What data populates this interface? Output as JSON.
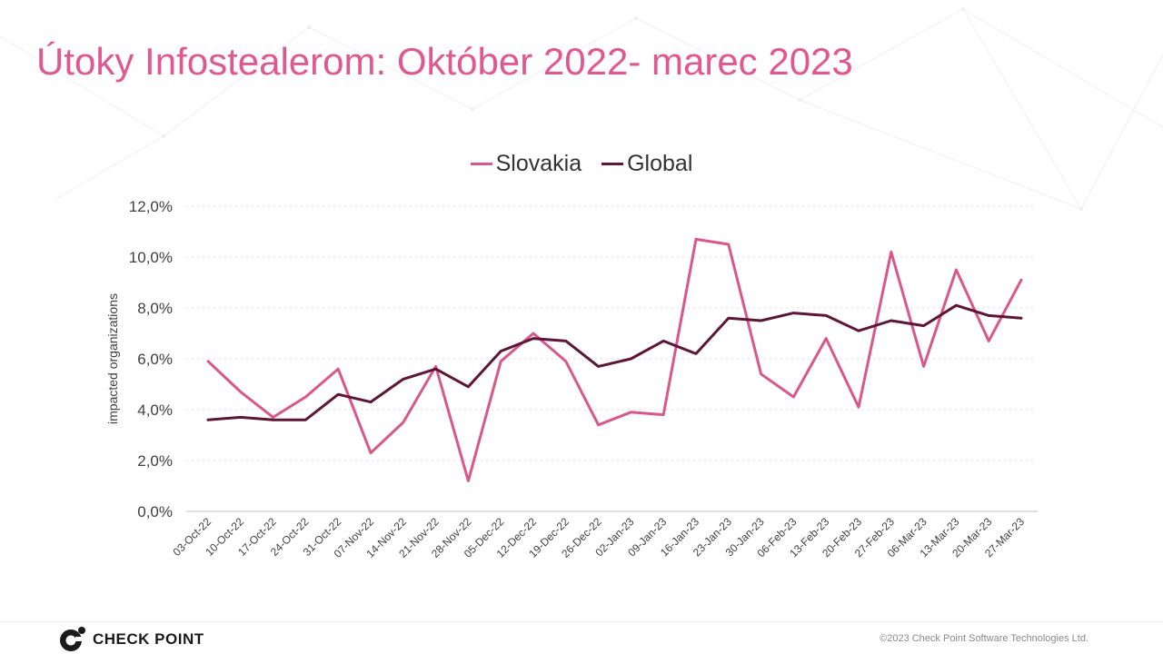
{
  "slide": {
    "title": "Útoky Infostealerom: Október 2022- marec 2023",
    "brand": "CHECK POINT",
    "copyright": "©2023 Check Point Software Technologies Ltd."
  },
  "colors": {
    "title": "#e0588f",
    "slovakia": "#d9578a",
    "global": "#5e1536",
    "grid": "#d9d9d9",
    "axis_text": "#404040"
  },
  "chart_data": {
    "type": "line",
    "title": "",
    "ylabel": "impacted organizations",
    "xlabel": "",
    "ylim": [
      0,
      12
    ],
    "yticks": [
      "0,0%",
      "2,0%",
      "4,0%",
      "6,0%",
      "8,0%",
      "10,0%",
      "12,0%"
    ],
    "grid": true,
    "legend": "top-center",
    "categories": [
      "03-Oct-22",
      "10-Oct-22",
      "17-Oct-22",
      "24-Oct-22",
      "31-Oct-22",
      "07-Nov-22",
      "14-Nov-22",
      "21-Nov-22",
      "28-Nov-22",
      "05-Dec-22",
      "12-Dec-22",
      "19-Dec-22",
      "26-Dec-22",
      "02-Jan-23",
      "09-Jan-23",
      "16-Jan-23",
      "23-Jan-23",
      "30-Jan-23",
      "06-Feb-23",
      "13-Feb-23",
      "20-Feb-23",
      "27-Feb-23",
      "06-Mar-23",
      "13-Mar-23",
      "20-Mar-23",
      "27-Mar-23"
    ],
    "series": [
      {
        "name": "Slovakia",
        "values": [
          5.9,
          4.7,
          3.7,
          4.5,
          5.6,
          2.3,
          3.5,
          5.7,
          1.2,
          5.9,
          7.0,
          5.9,
          3.4,
          3.9,
          3.8,
          10.7,
          10.5,
          5.4,
          4.5,
          6.8,
          4.1,
          10.2,
          5.7,
          9.5,
          6.7,
          9.1
        ]
      },
      {
        "name": "Global",
        "values": [
          3.6,
          3.7,
          3.6,
          3.6,
          4.6,
          4.3,
          5.2,
          5.6,
          4.9,
          6.3,
          6.8,
          6.7,
          5.7,
          6.0,
          6.7,
          6.2,
          7.6,
          7.5,
          7.8,
          7.7,
          7.1,
          7.5,
          7.3,
          8.1,
          7.7,
          7.6
        ]
      }
    ]
  }
}
